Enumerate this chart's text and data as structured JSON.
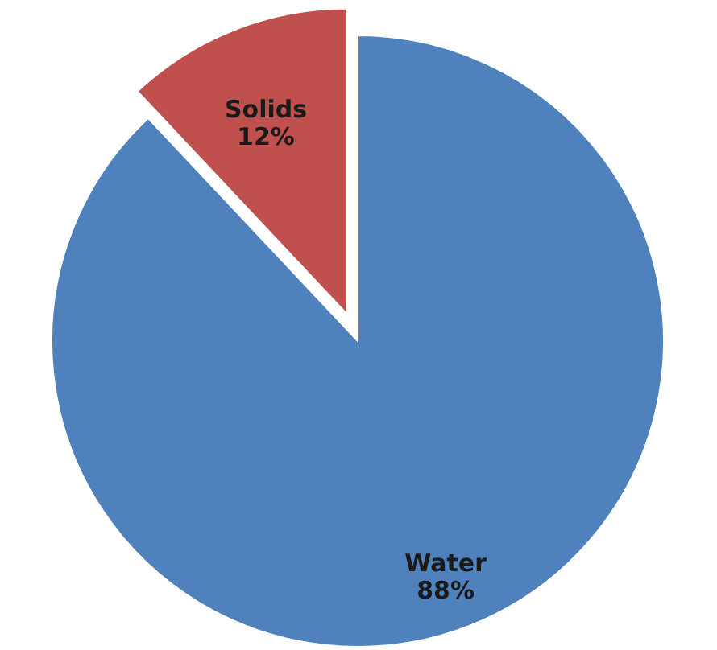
{
  "chart_data": {
    "type": "pie",
    "categories": [
      "Water",
      "Solids"
    ],
    "values": [
      88,
      12
    ],
    "colors": [
      "#4f81bd",
      "#c0504d"
    ],
    "value_labels": [
      "88%",
      "12%"
    ]
  }
}
